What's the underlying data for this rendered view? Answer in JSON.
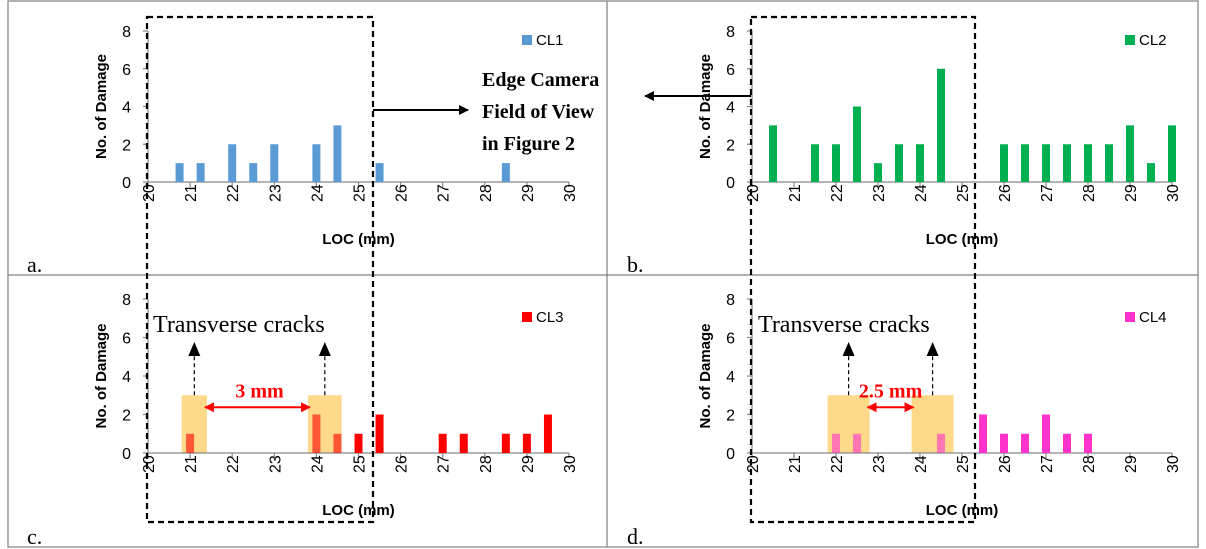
{
  "chart_data": [
    {
      "type": "bar",
      "panel_label": "a.",
      "legend": "CL1",
      "color": "#5b9bd5",
      "xlabel": "LOC (mm)",
      "ylabel": "No. of Damage",
      "xlim": [
        20,
        30
      ],
      "ylim": [
        0,
        8
      ],
      "yticks": [
        "0",
        "2",
        "4",
        "6",
        "8"
      ],
      "xticks": [
        "20",
        "21",
        "22",
        "23",
        "24",
        "25",
        "26",
        "27",
        "28",
        "29",
        "30"
      ],
      "points": [
        {
          "x": 20.75,
          "y": 1
        },
        {
          "x": 21.25,
          "y": 1
        },
        {
          "x": 22.0,
          "y": 2
        },
        {
          "x": 22.5,
          "y": 1
        },
        {
          "x": 23.0,
          "y": 2
        },
        {
          "x": 24.0,
          "y": 2
        },
        {
          "x": 24.5,
          "y": 3
        },
        {
          "x": 25.5,
          "y": 1
        },
        {
          "x": 28.5,
          "y": 1
        }
      ]
    },
    {
      "type": "bar",
      "panel_label": "b.",
      "legend": "CL2",
      "color": "#00b050",
      "xlabel": "LOC (mm)",
      "ylabel": "No. of Damage",
      "xlim": [
        20,
        30
      ],
      "ylim": [
        0,
        8
      ],
      "yticks": [
        "0",
        "2",
        "4",
        "6",
        "8"
      ],
      "xticks": [
        "20",
        "21",
        "22",
        "23",
        "24",
        "25",
        "26",
        "27",
        "28",
        "29",
        "30"
      ],
      "points": [
        {
          "x": 20.5,
          "y": 3
        },
        {
          "x": 21.5,
          "y": 2
        },
        {
          "x": 22.0,
          "y": 2
        },
        {
          "x": 22.5,
          "y": 4
        },
        {
          "x": 23.0,
          "y": 1
        },
        {
          "x": 23.5,
          "y": 2
        },
        {
          "x": 24.0,
          "y": 2
        },
        {
          "x": 24.5,
          "y": 6
        },
        {
          "x": 26.0,
          "y": 2
        },
        {
          "x": 26.5,
          "y": 2
        },
        {
          "x": 27.0,
          "y": 2
        },
        {
          "x": 27.5,
          "y": 2
        },
        {
          "x": 28.0,
          "y": 2
        },
        {
          "x": 28.5,
          "y": 2
        },
        {
          "x": 29.0,
          "y": 3
        },
        {
          "x": 29.5,
          "y": 1
        },
        {
          "x": 30.0,
          "y": 3
        }
      ]
    },
    {
      "type": "bar",
      "panel_label": "c.",
      "legend": "CL3",
      "color": "#ff0000",
      "xlabel": "LOC (mm)",
      "ylabel": "No. of Damage",
      "xlim": [
        20,
        30
      ],
      "ylim": [
        0,
        8
      ],
      "yticks": [
        "0",
        "2",
        "4",
        "6",
        "8"
      ],
      "xticks": [
        "20",
        "21",
        "22",
        "23",
        "24",
        "25",
        "26",
        "27",
        "28",
        "29",
        "30"
      ],
      "points": [
        {
          "x": 21.0,
          "y": 1
        },
        {
          "x": 24.0,
          "y": 2
        },
        {
          "x": 24.5,
          "y": 1
        },
        {
          "x": 25.0,
          "y": 1
        },
        {
          "x": 25.5,
          "y": 2
        },
        {
          "x": 27.0,
          "y": 1
        },
        {
          "x": 27.5,
          "y": 1
        },
        {
          "x": 28.5,
          "y": 1
        },
        {
          "x": 29.0,
          "y": 1
        },
        {
          "x": 29.5,
          "y": 2
        }
      ],
      "highlights": [
        {
          "x0": 20.8,
          "x1": 21.4,
          "y": 3
        },
        {
          "x0": 23.8,
          "x1": 24.6,
          "y": 3
        }
      ],
      "annotation_text": "Transverse cracks",
      "spacing_label": "3 mm"
    },
    {
      "type": "bar",
      "panel_label": "d.",
      "legend": "CL4",
      "color": "#ff33cc",
      "xlabel": "LOC (mm)",
      "ylabel": "No. of Damage",
      "xlim": [
        20,
        30
      ],
      "ylim": [
        0,
        8
      ],
      "yticks": [
        "0",
        "2",
        "4",
        "6",
        "8"
      ],
      "xticks": [
        "20",
        "21",
        "22",
        "23",
        "24",
        "25",
        "26",
        "27",
        "28",
        "29",
        "30"
      ],
      "points": [
        {
          "x": 22.0,
          "y": 1
        },
        {
          "x": 22.5,
          "y": 1
        },
        {
          "x": 24.5,
          "y": 1
        },
        {
          "x": 25.5,
          "y": 2
        },
        {
          "x": 26.0,
          "y": 1
        },
        {
          "x": 26.5,
          "y": 1
        },
        {
          "x": 27.0,
          "y": 2
        },
        {
          "x": 27.5,
          "y": 1
        },
        {
          "x": 28.0,
          "y": 1
        }
      ],
      "highlights": [
        {
          "x0": 21.8,
          "x1": 22.8,
          "y": 3
        },
        {
          "x0": 23.8,
          "x1": 24.8,
          "y": 3
        }
      ],
      "annotation_text": "Transverse cracks",
      "spacing_label": "2.5 mm"
    }
  ],
  "callout": {
    "line1": "Edge Camera",
    "line2": "Field of View",
    "line3": "in Figure 2"
  },
  "colors": {
    "highlight": "#ffd98a",
    "arrow_red": "#ff0000",
    "grid_border": "#808080"
  }
}
